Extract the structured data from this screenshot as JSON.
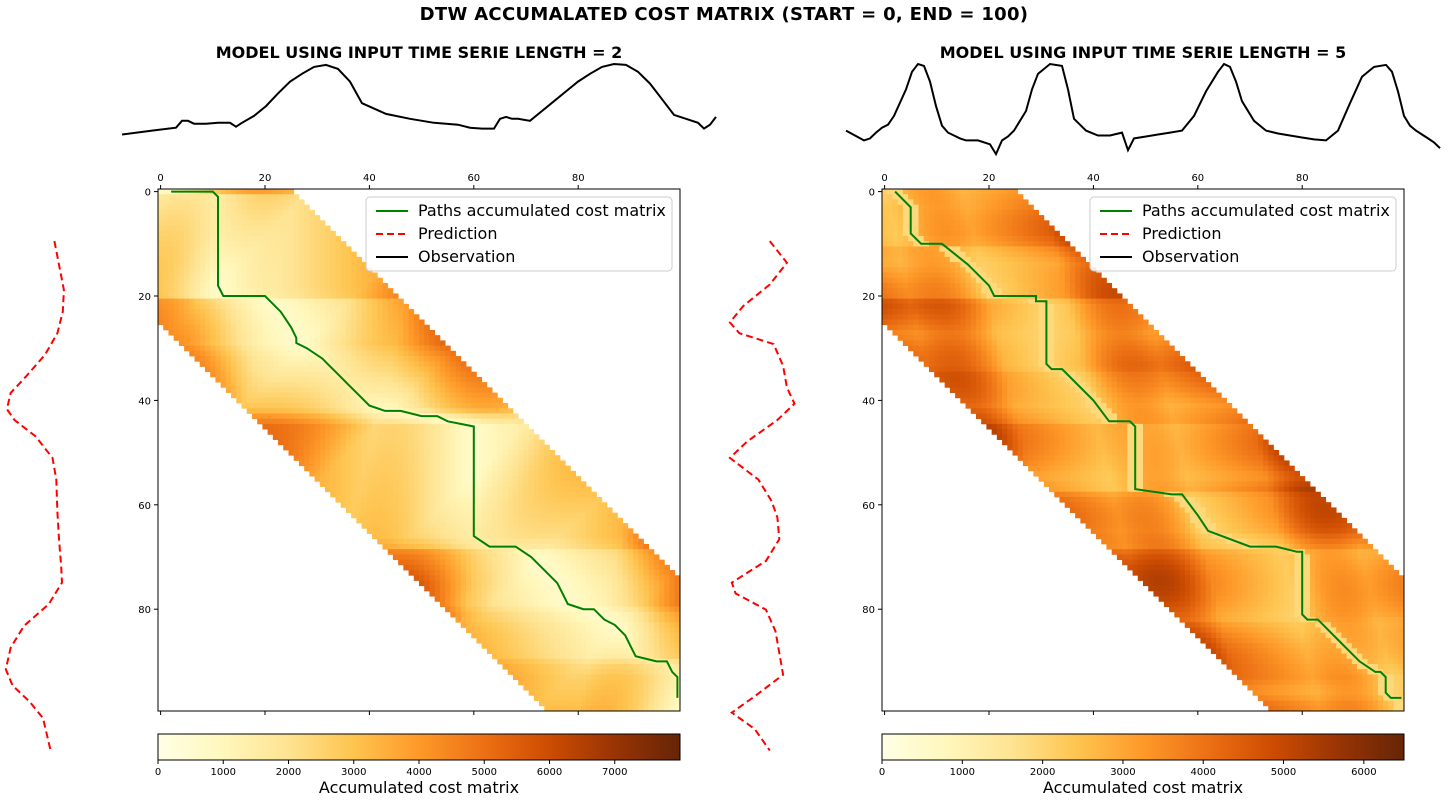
{
  "figure": {
    "title": "DTW ACCUMALATED COST MATRIX (START = 0, END = 100)"
  },
  "colors": {
    "path": "#008000",
    "prediction": "#ff0000",
    "observation": "#000000",
    "colormap": "YlOrBr"
  },
  "chart_data": [
    {
      "type": "heatmap",
      "title": "MODEL USING INPUT TIME SERIE LENGTH = 2",
      "colorbar_label": "Accumulated cost matrix",
      "colorbar_ticks": [
        "0",
        "1000",
        "2000",
        "3000",
        "4000",
        "5000",
        "6000",
        "7000"
      ],
      "colorbar_range": [
        0,
        8000
      ],
      "x_ticks": [
        "0",
        "20",
        "40",
        "60",
        "80"
      ],
      "y_ticks": [
        "0",
        "20",
        "40",
        "60",
        "80"
      ],
      "axis_range": [
        0,
        100
      ],
      "band_width": 25,
      "legend": {
        "placement": "upper-right",
        "entries": [
          "Paths accumulated cost matrix",
          "Prediction",
          "Observation"
        ]
      },
      "observation": {
        "x": [
          0,
          5,
          9,
          10,
          11,
          12,
          14,
          16,
          18,
          19,
          20,
          22,
          24,
          26,
          28,
          30,
          32,
          34,
          36,
          38,
          40,
          44,
          48,
          52,
          56,
          58,
          60,
          62,
          63,
          64,
          65,
          66,
          68,
          70,
          72,
          74,
          76,
          78,
          80,
          82,
          84,
          86,
          88,
          90,
          92,
          94,
          96,
          97,
          98,
          99
        ],
        "y": [
          0.26,
          0.3,
          0.33,
          0.4,
          0.4,
          0.37,
          0.37,
          0.38,
          0.38,
          0.34,
          0.38,
          0.45,
          0.55,
          0.68,
          0.8,
          0.88,
          0.95,
          0.97,
          0.93,
          0.8,
          0.58,
          0.47,
          0.42,
          0.38,
          0.36,
          0.33,
          0.32,
          0.32,
          0.42,
          0.44,
          0.42,
          0.42,
          0.4,
          0.5,
          0.6,
          0.7,
          0.8,
          0.88,
          0.95,
          0.98,
          0.97,
          0.9,
          0.78,
          0.62,
          0.46,
          0.42,
          0.38,
          0.32,
          0.36,
          0.44
        ]
      },
      "prediction": {
        "y": [
          5,
          14,
          18,
          22,
          26,
          30,
          33,
          36,
          38,
          41,
          45,
          49,
          55,
          60,
          65,
          68,
          72,
          76,
          80,
          84,
          87,
          90,
          93,
          96,
          99
        ],
        "x": [
          0.3,
          0.55,
          0.52,
          0.38,
          0.05,
          -0.45,
          -0.85,
          -0.95,
          -0.75,
          -0.2,
          0.25,
          0.35,
          0.38,
          0.42,
          0.48,
          0.5,
          0.15,
          -0.5,
          -0.85,
          -0.98,
          -0.8,
          -0.35,
          0.0,
          0.1,
          0.2
        ]
      },
      "path": {
        "x": [
          2,
          7,
          10,
          11,
          11,
          12,
          16,
          20,
          21,
          23,
          25,
          26,
          26,
          28,
          31,
          31,
          32,
          34,
          36,
          38,
          40,
          43,
          46,
          50,
          53,
          55,
          60,
          60,
          63,
          66,
          68,
          71,
          74,
          76,
          77,
          78,
          81,
          83,
          85,
          87,
          89,
          90,
          91,
          95,
          97,
          98,
          99,
          99
        ],
        "y": [
          0,
          0,
          0,
          1,
          18,
          20,
          20,
          20,
          21,
          23,
          26,
          28,
          29,
          30,
          32,
          32,
          33,
          35,
          37,
          39,
          41,
          42,
          42,
          43,
          43,
          44,
          45,
          66,
          68,
          68,
          68,
          70,
          73,
          75,
          77,
          79,
          80,
          80,
          82,
          83,
          85,
          87,
          89,
          90,
          90,
          92,
          93,
          97
        ]
      }
    },
    {
      "type": "heatmap",
      "title": "MODEL USING INPUT TIME SERIE LENGTH = 5",
      "colorbar_label": "Accumulated cost matrix",
      "colorbar_ticks": [
        "0",
        "1000",
        "2000",
        "3000",
        "4000",
        "5000",
        "6000"
      ],
      "colorbar_range": [
        0,
        6500
      ],
      "x_ticks": [
        "0",
        "20",
        "40",
        "60",
        "80"
      ],
      "y_ticks": [
        "0",
        "20",
        "40",
        "60",
        "80"
      ],
      "axis_range": [
        0,
        100
      ],
      "band_width": 25,
      "legend": {
        "placement": "upper-right",
        "entries": [
          "Paths accumulated cost matrix",
          "Prediction",
          "Observation"
        ]
      },
      "observation": {
        "x": [
          0,
          3,
          4,
          5,
          6,
          7,
          8,
          10,
          11,
          12,
          13,
          14,
          15,
          16,
          17,
          18,
          19,
          20,
          22,
          24,
          25,
          26,
          27,
          28,
          30,
          31,
          32,
          34,
          36,
          37,
          38,
          40,
          42,
          44,
          46,
          47,
          48,
          50,
          52,
          54,
          56,
          58,
          60,
          62,
          63,
          64,
          65,
          66,
          68,
          70,
          72,
          74,
          76,
          78,
          80,
          82,
          84,
          86,
          88,
          90,
          91,
          92,
          93,
          94,
          95,
          96,
          97,
          98,
          99
        ],
        "y": [
          0.3,
          0.2,
          0.22,
          0.28,
          0.33,
          0.36,
          0.45,
          0.72,
          0.9,
          0.98,
          0.96,
          0.8,
          0.55,
          0.35,
          0.28,
          0.25,
          0.22,
          0.2,
          0.2,
          0.16,
          0.06,
          0.2,
          0.24,
          0.3,
          0.5,
          0.72,
          0.88,
          0.98,
          0.96,
          0.72,
          0.42,
          0.3,
          0.25,
          0.25,
          0.28,
          0.1,
          0.22,
          0.24,
          0.26,
          0.28,
          0.3,
          0.45,
          0.7,
          0.9,
          0.98,
          0.95,
          0.8,
          0.6,
          0.4,
          0.3,
          0.27,
          0.25,
          0.23,
          0.21,
          0.2,
          0.3,
          0.58,
          0.85,
          0.95,
          0.97,
          0.9,
          0.7,
          0.45,
          0.35,
          0.3,
          0.26,
          0.22,
          0.18,
          0.12
        ]
      },
      "prediction": {
        "y": [
          5,
          9,
          13,
          17,
          20,
          22,
          24,
          28,
          32,
          35,
          38,
          42,
          45,
          49,
          53,
          56,
          60,
          64,
          68,
          70,
          73,
          77,
          81,
          85,
          89,
          92,
          95,
          99
        ],
        "x": [
          0.1,
          0.55,
          0.1,
          -0.6,
          -0.95,
          -0.7,
          0.2,
          0.45,
          0.55,
          0.75,
          0.3,
          -0.5,
          -0.95,
          -0.2,
          0.15,
          0.3,
          0.35,
          0.0,
          -0.9,
          -0.8,
          0.0,
          0.25,
          0.35,
          0.45,
          -0.3,
          -0.9,
          -0.3,
          0.1
        ]
      },
      "path": {
        "x": [
          2,
          5,
          5,
          7,
          11,
          16,
          20,
          21,
          26,
          29,
          29,
          31,
          31,
          32,
          34,
          36,
          40,
          43,
          46,
          47,
          48,
          48,
          55,
          57,
          60,
          62,
          70,
          75,
          79,
          80,
          80,
          81,
          83,
          87,
          91,
          94,
          95,
          96,
          96,
          97,
          98,
          99
        ],
        "y": [
          0,
          3,
          8,
          10,
          10,
          14,
          18,
          20,
          20,
          20,
          21,
          21,
          33,
          34,
          34,
          36,
          40,
          44,
          44,
          44,
          45,
          57,
          58,
          58,
          62,
          65,
          68,
          68,
          69,
          69,
          81,
          82,
          82,
          86,
          90,
          92,
          92,
          93,
          96,
          97,
          97,
          97
        ]
      }
    }
  ]
}
